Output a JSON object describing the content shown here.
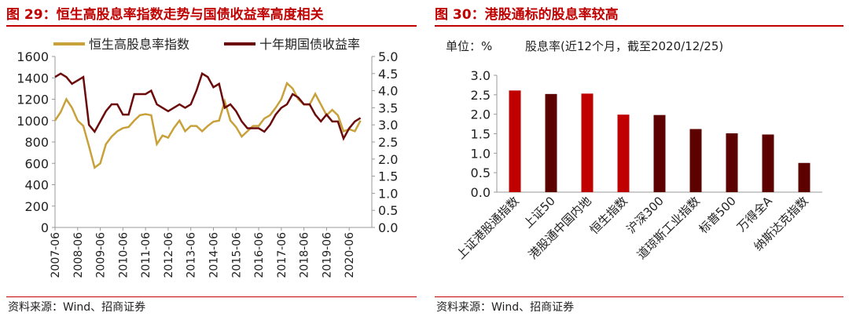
{
  "left": {
    "title": "图 29：恒生高股息率指数走势与国债收益率高度相关",
    "source": "资料来源：Wind、招商证券"
  },
  "right": {
    "title": "图 30：港股通标的股息率较高",
    "unit": "单位：%",
    "subtitle": "股息率(近12个月，截至2020/12/25)",
    "source": "资料来源：Wind、招商证券"
  },
  "colors": {
    "title": "#C00000",
    "gold": "#C9A13B",
    "maroon": "#6B0A0A",
    "bar_red": "#C00000",
    "bar_dark": "#5C0000"
  },
  "chart_data": [
    {
      "type": "line",
      "x_ticks": [
        "2007-06",
        "2008-06",
        "2009-06",
        "2010-06",
        "2011-06",
        "2012-06",
        "2013-06",
        "2014-06",
        "2015-06",
        "2016-06",
        "2017-06",
        "2018-06",
        "2019-06",
        "2020-06"
      ],
      "x": [
        "2007-06",
        "2007-09",
        "2007-12",
        "2008-03",
        "2008-06",
        "2008-09",
        "2008-12",
        "2009-03",
        "2009-06",
        "2009-09",
        "2009-12",
        "2010-03",
        "2010-06",
        "2010-09",
        "2010-12",
        "2011-03",
        "2011-06",
        "2011-09",
        "2011-12",
        "2012-03",
        "2012-06",
        "2012-09",
        "2012-12",
        "2013-03",
        "2013-06",
        "2013-09",
        "2013-12",
        "2014-03",
        "2014-06",
        "2014-09",
        "2014-12",
        "2015-03",
        "2015-06",
        "2015-09",
        "2015-12",
        "2016-03",
        "2016-06",
        "2016-09",
        "2016-12",
        "2017-03",
        "2017-06",
        "2017-09",
        "2017-12",
        "2018-03",
        "2018-06",
        "2018-09",
        "2018-12",
        "2019-03",
        "2019-06",
        "2019-09",
        "2019-12",
        "2020-03",
        "2020-06",
        "2020-09",
        "2020-12"
      ],
      "y_left": {
        "range": [
          0,
          1600
        ],
        "ticks": [
          "0",
          "200",
          "400",
          "600",
          "800",
          "1000",
          "1200",
          "1400",
          "1600"
        ]
      },
      "y_right": {
        "range": [
          0,
          5
        ],
        "ticks": [
          "0.0",
          "0.5",
          "1.0",
          "1.5",
          "2.0",
          "2.5",
          "3.0",
          "3.5",
          "4.0",
          "4.5",
          "5.0"
        ]
      },
      "legend": "top",
      "series": [
        {
          "name": "恒生高股息率指数",
          "axis": "left",
          "color": "#C9A13B",
          "values": [
            1000,
            1080,
            1200,
            1120,
            1000,
            950,
            760,
            560,
            600,
            780,
            850,
            900,
            930,
            940,
            1000,
            1050,
            1060,
            1050,
            780,
            860,
            840,
            930,
            1000,
            900,
            950,
            950,
            900,
            950,
            990,
            1000,
            1180,
            1000,
            940,
            850,
            900,
            950,
            950,
            1020,
            1050,
            1120,
            1200,
            1350,
            1300,
            1200,
            1150,
            1150,
            1250,
            1150,
            1050,
            1100,
            1050,
            900,
            920,
            900,
            1000
          ]
        },
        {
          "name": "十年期国债收益率",
          "axis": "right",
          "color": "#6B0A0A",
          "values": [
            4.4,
            4.5,
            4.4,
            4.2,
            4.3,
            4.4,
            3.0,
            2.8,
            3.1,
            3.4,
            3.6,
            3.6,
            3.3,
            3.3,
            3.9,
            3.9,
            3.9,
            4.0,
            3.6,
            3.5,
            3.4,
            3.5,
            3.6,
            3.5,
            3.6,
            4.0,
            4.5,
            4.4,
            4.1,
            4.2,
            3.5,
            3.6,
            3.4,
            3.1,
            2.9,
            2.9,
            2.9,
            2.8,
            3.0,
            3.3,
            3.5,
            3.6,
            3.9,
            3.8,
            3.6,
            3.6,
            3.3,
            3.1,
            3.3,
            3.1,
            3.1,
            2.6,
            2.9,
            3.1,
            3.2
          ]
        }
      ]
    },
    {
      "type": "bar",
      "categories": [
        "上证港股通指数",
        "上证50",
        "港股通中国内地",
        "恒生指数",
        "沪深300",
        "道琼斯工业指数",
        "标普500",
        "万得全A",
        "纳斯达克指数"
      ],
      "values": [
        2.61,
        2.52,
        2.53,
        1.99,
        1.98,
        1.62,
        1.51,
        1.48,
        0.75
      ],
      "highlight": [
        true,
        false,
        true,
        true,
        false,
        false,
        false,
        false,
        false
      ],
      "ylim": [
        0,
        3
      ],
      "y_ticks": [
        "0.0",
        "0.5",
        "1.0",
        "1.5",
        "2.0",
        "2.5",
        "3.0"
      ]
    }
  ]
}
